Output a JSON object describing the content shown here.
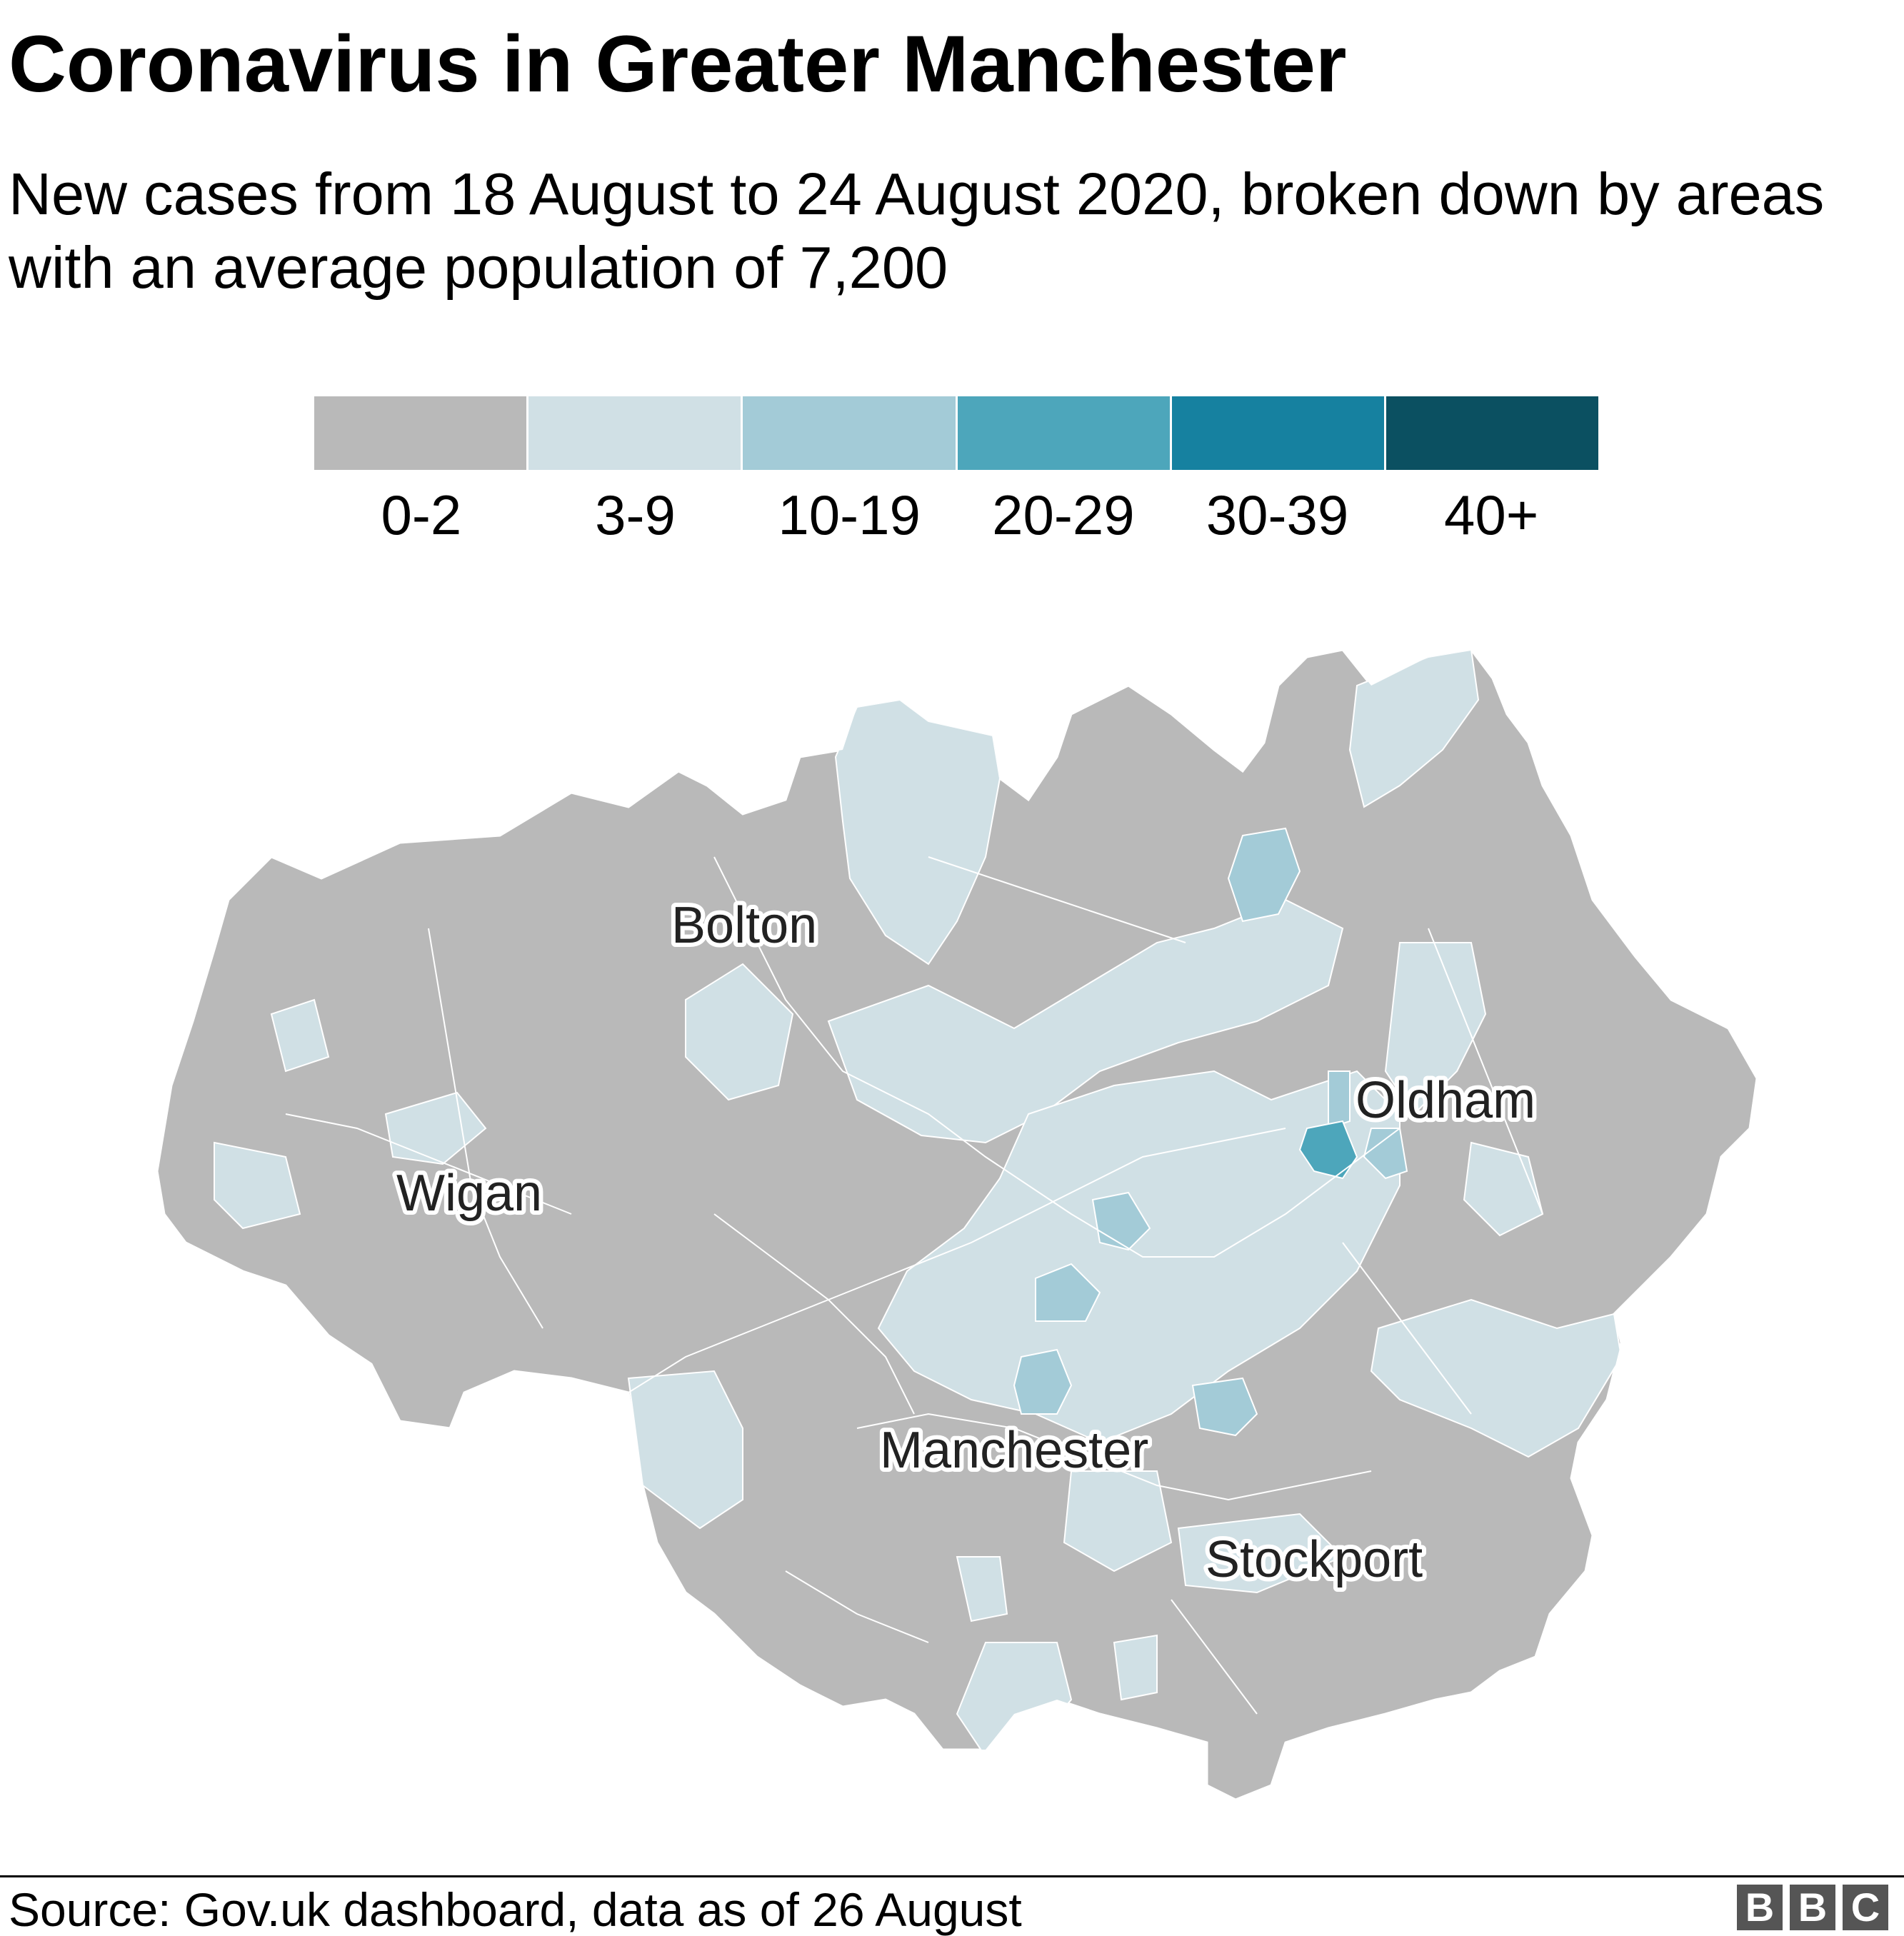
{
  "title": "Coronavirus in Greater Manchester",
  "subtitle": "New cases from 18 August to 24 August 2020, broken down by areas with an average population of 7,200",
  "legend": {
    "bins": [
      {
        "label": "0-2",
        "color": "#b9b9b9"
      },
      {
        "label": "3-9",
        "color": "#d0e0e5"
      },
      {
        "label": "10-19",
        "color": "#a3cbd7"
      },
      {
        "label": "20-29",
        "color": "#4da6bb"
      },
      {
        "label": "30-39",
        "color": "#1681a0"
      },
      {
        "label": "40+",
        "color": "#0b5061"
      }
    ]
  },
  "map": {
    "places": [
      {
        "name": "Bolton"
      },
      {
        "name": "Wigan"
      },
      {
        "name": "Oldham"
      },
      {
        "name": "Manchester"
      },
      {
        "name": "Stockport"
      }
    ]
  },
  "footer": {
    "source": "Source: Gov.uk dashboard, data as of 26 August",
    "logo_letters": [
      "B",
      "B",
      "C"
    ]
  }
}
